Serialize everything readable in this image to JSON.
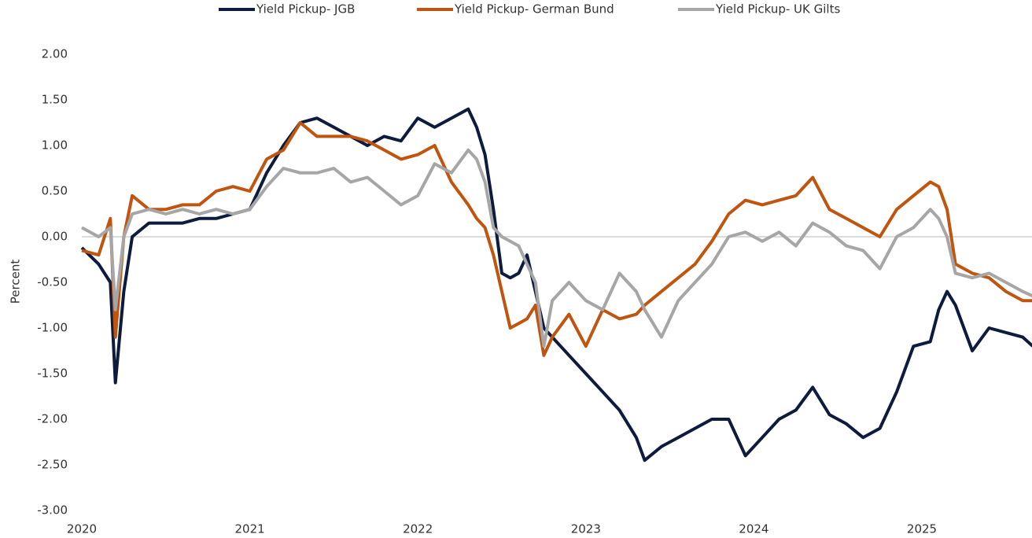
{
  "chart_data": {
    "type": "line",
    "y_label": "Percent",
    "x": [
      2020,
      2020.1,
      2020.17,
      2020.2,
      2020.25,
      2020.3,
      2020.4,
      2020.5,
      2020.6,
      2020.7,
      2020.8,
      2020.9,
      2021,
      2021.1,
      2021.2,
      2021.3,
      2021.4,
      2021.5,
      2021.6,
      2021.7,
      2021.8,
      2021.9,
      2022,
      2022.1,
      2022.2,
      2022.3,
      2022.35,
      2022.4,
      2022.45,
      2022.5,
      2022.55,
      2022.6,
      2022.65,
      2022.7,
      2022.75,
      2022.8,
      2022.9,
      2023,
      2023.1,
      2023.2,
      2023.3,
      2023.35,
      2023.45,
      2023.55,
      2023.65,
      2023.75,
      2023.85,
      2023.95,
      2024.05,
      2024.15,
      2024.25,
      2024.35,
      2024.45,
      2024.55,
      2024.65,
      2024.75,
      2024.85,
      2024.95,
      2025.05,
      2025.1,
      2025.15,
      2025.2,
      2025.3,
      2025.4,
      2025.5,
      2025.6,
      2025.66
    ],
    "series": [
      {
        "name": "Yield Pickup- JGB",
        "color": "#0d1b3e",
        "values": [
          -0.12,
          -0.3,
          -0.5,
          -1.6,
          -0.6,
          0.0,
          0.15,
          0.15,
          0.15,
          0.2,
          0.2,
          0.25,
          0.3,
          0.7,
          1.0,
          1.25,
          1.3,
          1.2,
          1.1,
          1.0,
          1.1,
          1.05,
          1.3,
          1.2,
          1.3,
          1.4,
          1.2,
          0.9,
          0.3,
          -0.4,
          -0.45,
          -0.4,
          -0.2,
          -0.6,
          -1.0,
          -1.1,
          -1.3,
          -1.5,
          -1.7,
          -1.9,
          -2.2,
          -2.45,
          -2.3,
          -2.2,
          -2.1,
          -2.0,
          -2.0,
          -2.4,
          -2.2,
          -2.0,
          -1.9,
          -1.65,
          -1.95,
          -2.05,
          -2.2,
          -2.1,
          -1.7,
          -1.2,
          -1.15,
          -0.8,
          -0.6,
          -0.75,
          -1.25,
          -1.0,
          -1.05,
          -1.1,
          -1.2
        ]
      },
      {
        "name": "Yield Pickup- German Bund",
        "color": "#c0550f",
        "values": [
          -0.15,
          -0.2,
          0.2,
          -1.1,
          0.0,
          0.45,
          0.3,
          0.3,
          0.35,
          0.35,
          0.5,
          0.55,
          0.5,
          0.85,
          0.95,
          1.25,
          1.1,
          1.1,
          1.1,
          1.05,
          0.95,
          0.85,
          0.9,
          1.0,
          0.6,
          0.35,
          0.2,
          0.1,
          -0.2,
          -0.6,
          -1.0,
          -0.95,
          -0.9,
          -0.75,
          -1.3,
          -1.1,
          -0.85,
          -1.2,
          -0.8,
          -0.9,
          -0.85,
          -0.75,
          -0.6,
          -0.45,
          -0.3,
          -0.05,
          0.25,
          0.4,
          0.35,
          0.4,
          0.45,
          0.65,
          0.3,
          0.2,
          0.1,
          0.0,
          0.3,
          0.45,
          0.6,
          0.55,
          0.3,
          -0.3,
          -0.4,
          -0.45,
          -0.6,
          -0.7,
          -0.7
        ]
      },
      {
        "name": "Yield Pickup- UK Gilts",
        "color": "#a6a6a6",
        "values": [
          0.1,
          0.0,
          0.1,
          -0.8,
          0.0,
          0.25,
          0.3,
          0.25,
          0.3,
          0.25,
          0.3,
          0.25,
          0.3,
          0.55,
          0.75,
          0.7,
          0.7,
          0.75,
          0.6,
          0.65,
          0.5,
          0.35,
          0.45,
          0.8,
          0.7,
          0.95,
          0.85,
          0.6,
          0.1,
          0.0,
          -0.05,
          -0.1,
          -0.3,
          -0.5,
          -1.2,
          -0.7,
          -0.5,
          -0.7,
          -0.8,
          -0.4,
          -0.6,
          -0.8,
          -1.1,
          -0.7,
          -0.5,
          -0.3,
          0.0,
          0.05,
          -0.05,
          0.05,
          -0.1,
          0.15,
          0.05,
          -0.1,
          -0.15,
          -0.35,
          0.0,
          0.1,
          0.3,
          0.2,
          0.0,
          -0.4,
          -0.45,
          -0.4,
          -0.5,
          -0.6,
          -0.65
        ]
      }
    ],
    "xlim": [
      2020,
      2025.66
    ],
    "xticks": [
      2020,
      2021,
      2022,
      2023,
      2024,
      2025
    ],
    "ylim": [
      -3,
      2
    ],
    "yticks": [
      {
        "value": -3,
        "label": "-3.00"
      },
      {
        "value": -2.5,
        "label": "-2.50"
      },
      {
        "value": -2,
        "label": "-2.00"
      },
      {
        "value": -1.5,
        "label": "-1.50"
      },
      {
        "value": -1,
        "label": "-1.00"
      },
      {
        "value": -0.5,
        "label": "-0.50"
      },
      {
        "value": 0,
        "label": "0.00"
      },
      {
        "value": 0.5,
        "label": "0.50"
      },
      {
        "value": 1,
        "label": "1.00"
      },
      {
        "value": 1.5,
        "label": "1.50"
      },
      {
        "value": 2,
        "label": "2.00"
      }
    ],
    "zero_line": true,
    "legend": "top"
  }
}
